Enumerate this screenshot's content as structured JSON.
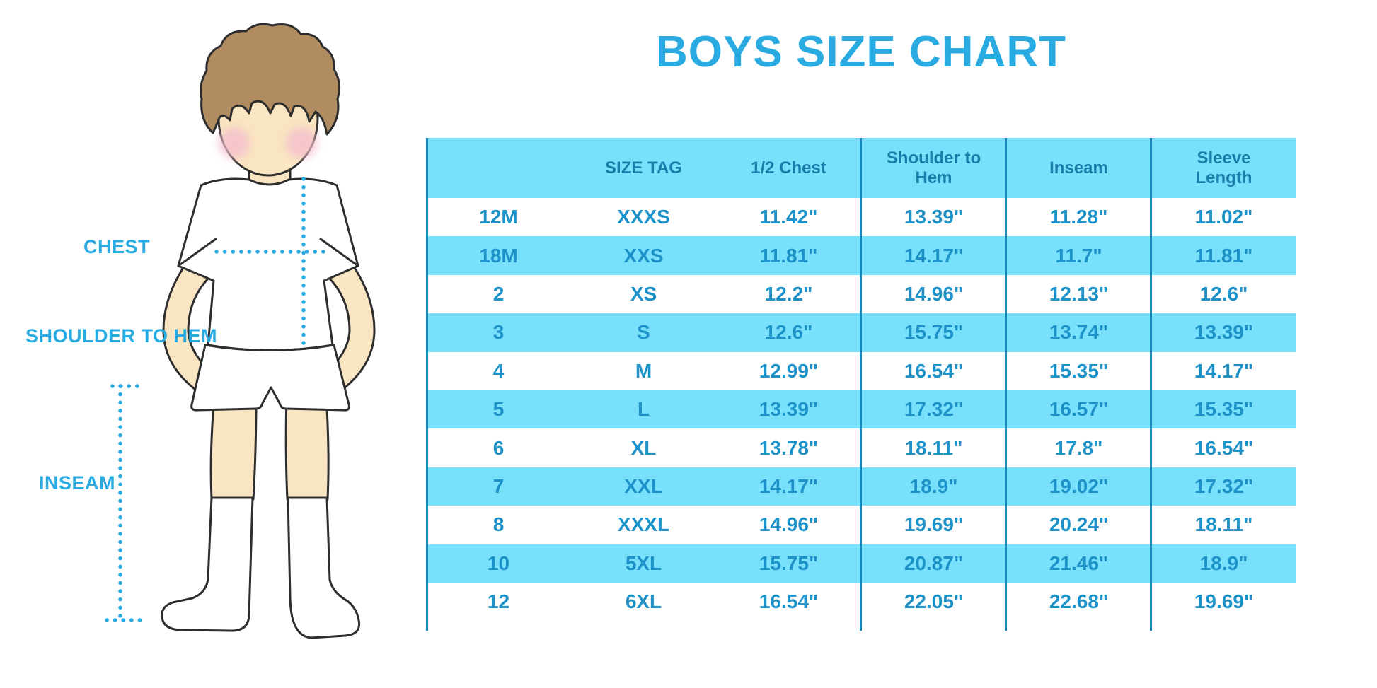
{
  "page": {
    "title": "BOYS SIZE CHART"
  },
  "colors": {
    "accent_blue": "#29ABE2",
    "table_band": "#78E0FA",
    "divider_blue": "#1588BE",
    "header_text": "#1A7CA8",
    "cell_text": "#1C92C8",
    "skin": "#F9E5C1",
    "hair": "#B18C61",
    "blush": "#F4BECD",
    "outline": "#2E2E2E"
  },
  "diagram": {
    "labels": {
      "chest": "CHEST",
      "shoulder_to_hem": "SHOULDER TO HEM",
      "inseam": "INSEAM"
    }
  },
  "chart_data": {
    "type": "table",
    "title": "BOYS SIZE CHART",
    "columns": [
      "",
      "SIZE TAG",
      "1/2 Chest",
      "Shoulder to Hem",
      "Inseam",
      "Sleeve Length"
    ],
    "rows": [
      [
        "12M",
        "XXXS",
        "11.42\"",
        "13.39\"",
        "11.28\"",
        "11.02\""
      ],
      [
        "18M",
        "XXS",
        "11.81\"",
        "14.17\"",
        "11.7\"",
        "11.81\""
      ],
      [
        "2",
        "XS",
        "12.2\"",
        "14.96\"",
        "12.13\"",
        "12.6\""
      ],
      [
        "3",
        "S",
        "12.6\"",
        "15.75\"",
        "13.74\"",
        "13.39\""
      ],
      [
        "4",
        "M",
        "12.99\"",
        "16.54\"",
        "15.35\"",
        "14.17\""
      ],
      [
        "5",
        "L",
        "13.39\"",
        "17.32\"",
        "16.57\"",
        "15.35\""
      ],
      [
        "6",
        "XL",
        "13.78\"",
        "18.11\"",
        "17.8\"",
        "16.54\""
      ],
      [
        "7",
        "XXL",
        "14.17\"",
        "18.9\"",
        "19.02\"",
        "17.32\""
      ],
      [
        "8",
        "XXXL",
        "14.96\"",
        "19.69\"",
        "20.24\"",
        "18.11\""
      ],
      [
        "10",
        "5XL",
        "15.75\"",
        "20.87\"",
        "21.46\"",
        "18.9\""
      ],
      [
        "12",
        "6XL",
        "16.54\"",
        "22.05\"",
        "22.68\"",
        "19.69\""
      ]
    ]
  }
}
